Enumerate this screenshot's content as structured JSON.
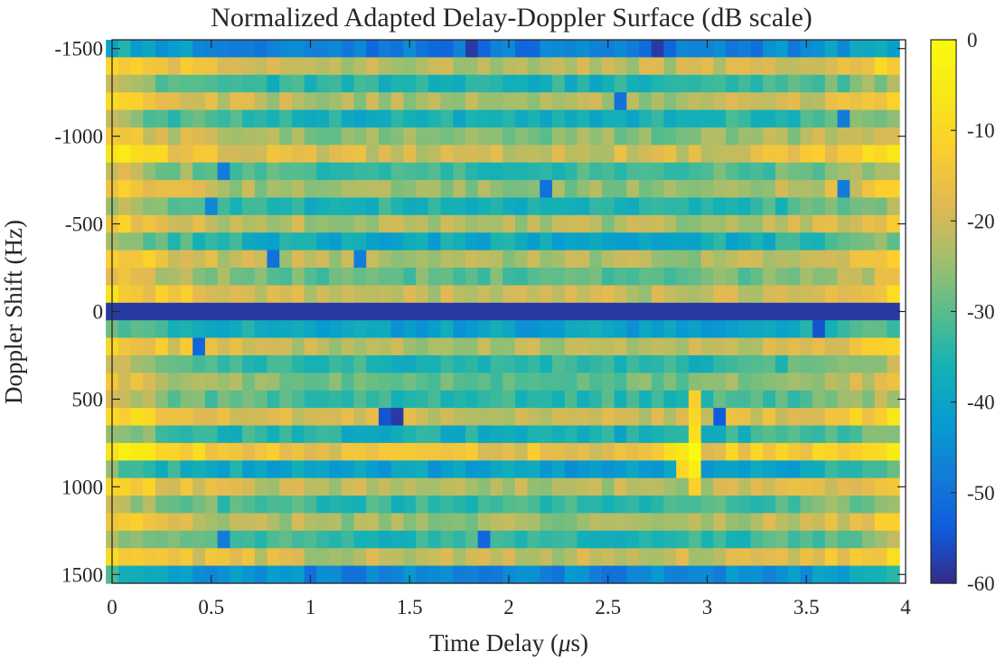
{
  "chart_data": {
    "type": "heatmap",
    "title": "Normalized Adapted Delay-Doppler Surface (dB scale)",
    "xlabel_prefix": "Time Delay (",
    "xlabel_mu": "μ",
    "xlabel_suffix": "s)",
    "ylabel": "Doppler Shift (Hz)",
    "xlim": [
      0,
      4
    ],
    "ylim": [
      -1550,
      1550
    ],
    "y_reversed": true,
    "x_ticks": [
      0,
      0.5,
      1,
      1.5,
      2,
      2.5,
      3,
      3.5,
      4
    ],
    "x_tick_labels": [
      "0",
      "0.5",
      "1",
      "1.5",
      "2",
      "2.5",
      "3",
      "3.5",
      "4"
    ],
    "y_ticks": [
      -1500,
      -1000,
      -500,
      0,
      500,
      1000,
      1500
    ],
    "y_tick_labels": [
      "-1500",
      "-1000",
      "-500",
      "0",
      "500",
      "1000",
      "1500"
    ],
    "colorbar": {
      "colormap": "parula",
      "clim": [
        -60,
        0
      ],
      "ticks": [
        0,
        -10,
        -20,
        -30,
        -40,
        -50,
        -60
      ],
      "tick_labels": [
        "0",
        "-10",
        "-20",
        "-30",
        "-40",
        "-50",
        "-60"
      ]
    },
    "grid": {
      "x_start": 0,
      "x_step": 0.0625,
      "n_cols": 64,
      "y_start": -1500,
      "y_step": 100,
      "n_rows": 31
    },
    "row_profile_db": [
      -40,
      -13,
      -27,
      -15,
      -28,
      -18,
      -11,
      -24,
      -17,
      -27,
      -15,
      -30,
      -15,
      -21,
      -13,
      -60,
      -32,
      -14,
      -26,
      -20,
      -25,
      -12,
      -28,
      -8,
      -33,
      -14,
      -25,
      -16,
      -26,
      -13,
      -38
    ],
    "column_shape_db": [
      3,
      2,
      1,
      0,
      -1,
      -2,
      -2,
      -3,
      -3,
      -4,
      -4,
      -4,
      -5,
      -5,
      -5,
      -5,
      -6,
      -6,
      -6,
      -6,
      -6,
      -6,
      -6,
      -6,
      -6,
      -6,
      -6,
      -6,
      -6,
      -6,
      -6,
      -6,
      -6,
      -6,
      -6,
      -6,
      -6,
      -6,
      -6,
      -6,
      -6,
      -6,
      -6,
      -6,
      -6,
      -6,
      -6,
      -6,
      -6,
      -5,
      -5,
      -5,
      -5,
      -4,
      -4,
      -4,
      -3,
      -3,
      -2,
      -2,
      -1,
      0,
      1,
      2
    ],
    "hotspot_cells_db": [
      {
        "x": 2.9375,
        "y": 800,
        "db": 0
      },
      {
        "x": 2.9375,
        "y": 900,
        "db": -4
      },
      {
        "x": 2.9375,
        "y": 700,
        "db": -8
      },
      {
        "x": 2.9375,
        "y": 600,
        "db": -10
      },
      {
        "x": 2.9375,
        "y": 500,
        "db": -12
      },
      {
        "x": 2.875,
        "y": 800,
        "db": -6
      },
      {
        "x": 2.8125,
        "y": 800,
        "db": -8
      },
      {
        "x": 3.125,
        "y": 800,
        "db": -10
      },
      {
        "x": 3.25,
        "y": 800,
        "db": -10
      },
      {
        "x": 2.875,
        "y": 900,
        "db": -10
      },
      {
        "x": 2.9375,
        "y": 1000,
        "db": -12
      }
    ],
    "deep_null_cells_db": [
      {
        "x": 1.8125,
        "y": -1500,
        "db": -58
      },
      {
        "x": 2.75,
        "y": -1500,
        "db": -58
      },
      {
        "x": 2.5625,
        "y": -1200,
        "db": -50
      },
      {
        "x": 3.6875,
        "y": -1100,
        "db": -48
      },
      {
        "x": 0.5625,
        "y": -800,
        "db": -48
      },
      {
        "x": 2.1875,
        "y": -700,
        "db": -50
      },
      {
        "x": 3.6875,
        "y": -700,
        "db": -48
      },
      {
        "x": 0.5,
        "y": -600,
        "db": -46
      },
      {
        "x": 0.8125,
        "y": -300,
        "db": -50
      },
      {
        "x": 1.25,
        "y": -300,
        "db": -48
      },
      {
        "x": 3.5625,
        "y": 100,
        "db": -55
      },
      {
        "x": 0.4375,
        "y": 200,
        "db": -52
      },
      {
        "x": 1.375,
        "y": 600,
        "db": -55
      },
      {
        "x": 1.4375,
        "y": 600,
        "db": -58
      },
      {
        "x": 3.0625,
        "y": 600,
        "db": -54
      },
      {
        "x": 1.875,
        "y": 1300,
        "db": -52
      },
      {
        "x": 0.5625,
        "y": 1300,
        "db": -48
      },
      {
        "x": 1.0625,
        "y": 1600,
        "db": -55
      }
    ]
  }
}
